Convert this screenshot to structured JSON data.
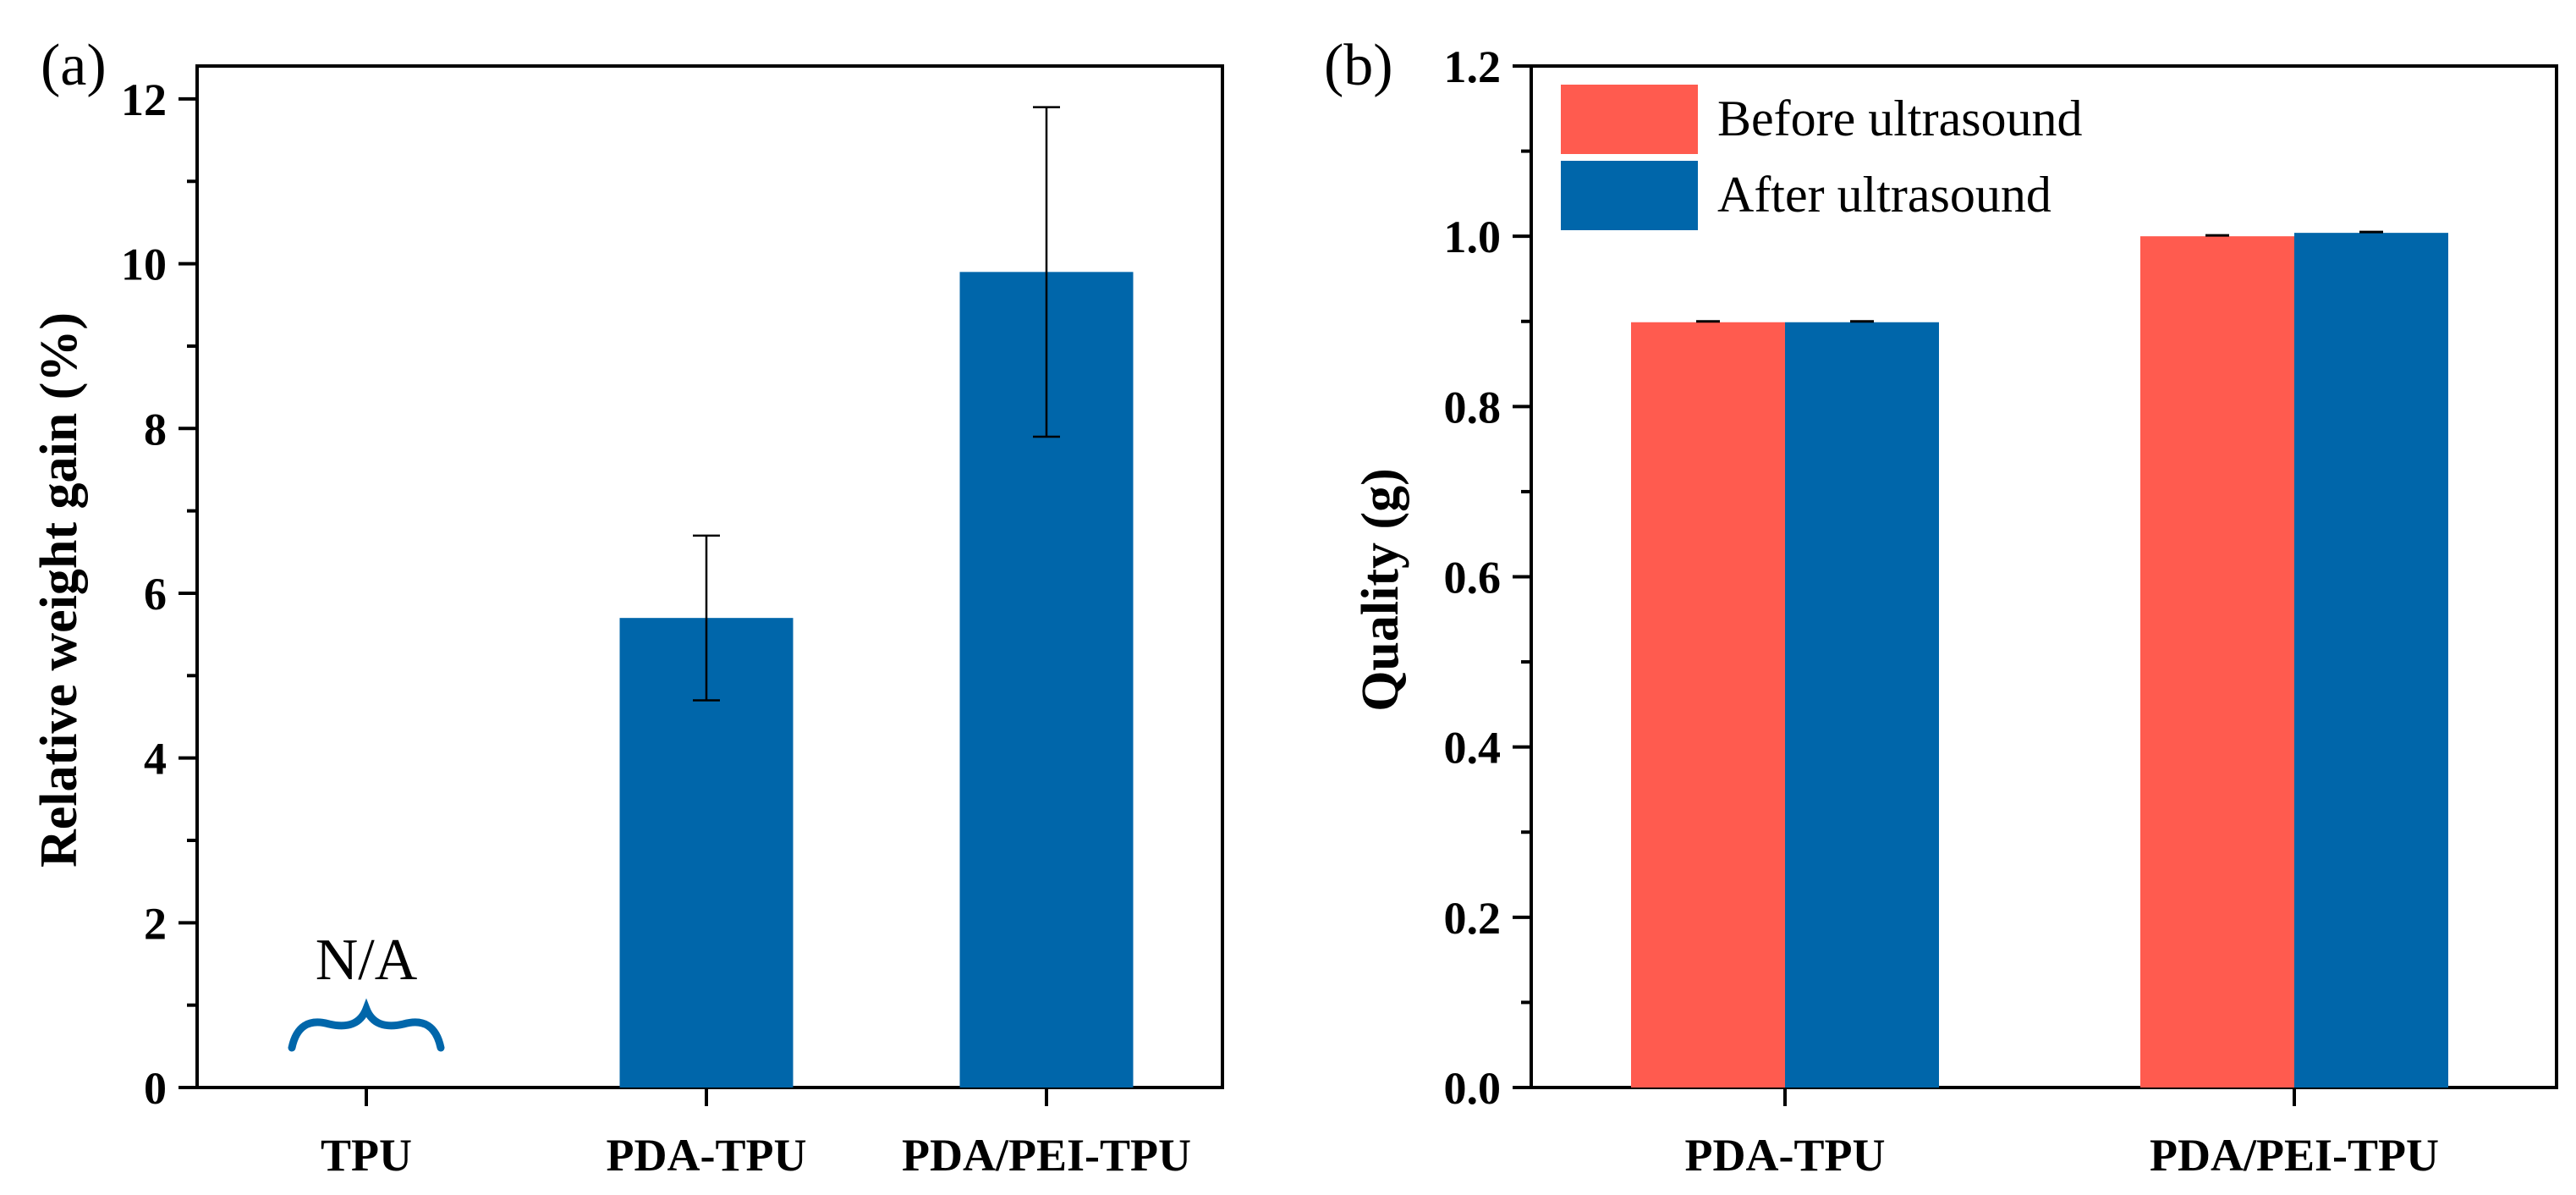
{
  "chart_data": [
    {
      "panel_label": "(a)",
      "type": "bar",
      "categories": [
        "TPU",
        "PDA-TPU",
        "PDA/PEI-TPU"
      ],
      "values": [
        null,
        5.7,
        9.9
      ],
      "errors": [
        null,
        1.0,
        2.0
      ],
      "ylabel": "Relative weight gain (%)",
      "xlabel": "",
      "ylim": [
        0,
        12.4
      ],
      "yticks": [
        0,
        2,
        4,
        6,
        8,
        10,
        12
      ],
      "bar_color": "#0066AA",
      "annotations": [
        {
          "category": "TPU",
          "text": "N/A",
          "symbol": "brace"
        }
      ],
      "legend": null,
      "grid": false
    },
    {
      "panel_label": "(b)",
      "type": "bar",
      "categories": [
        "PDA-TPU",
        "PDA/PEI-TPU"
      ],
      "series": [
        {
          "name": "Before ultrasound",
          "values": [
            0.899,
            1.0
          ],
          "errors": [
            0.001,
            0.001
          ],
          "color": "#FF5B4F"
        },
        {
          "name": "After ultrasound",
          "values": [
            0.899,
            1.004
          ],
          "errors": [
            0.001,
            0.001
          ],
          "color": "#0066AA"
        }
      ],
      "ylabel": "Quality (g)",
      "xlabel": "",
      "ylim": [
        0,
        1.2
      ],
      "yticks": [
        0.0,
        0.2,
        0.4,
        0.6,
        0.8,
        1.0,
        1.2
      ],
      "legend": "top-left",
      "grid": false
    }
  ]
}
